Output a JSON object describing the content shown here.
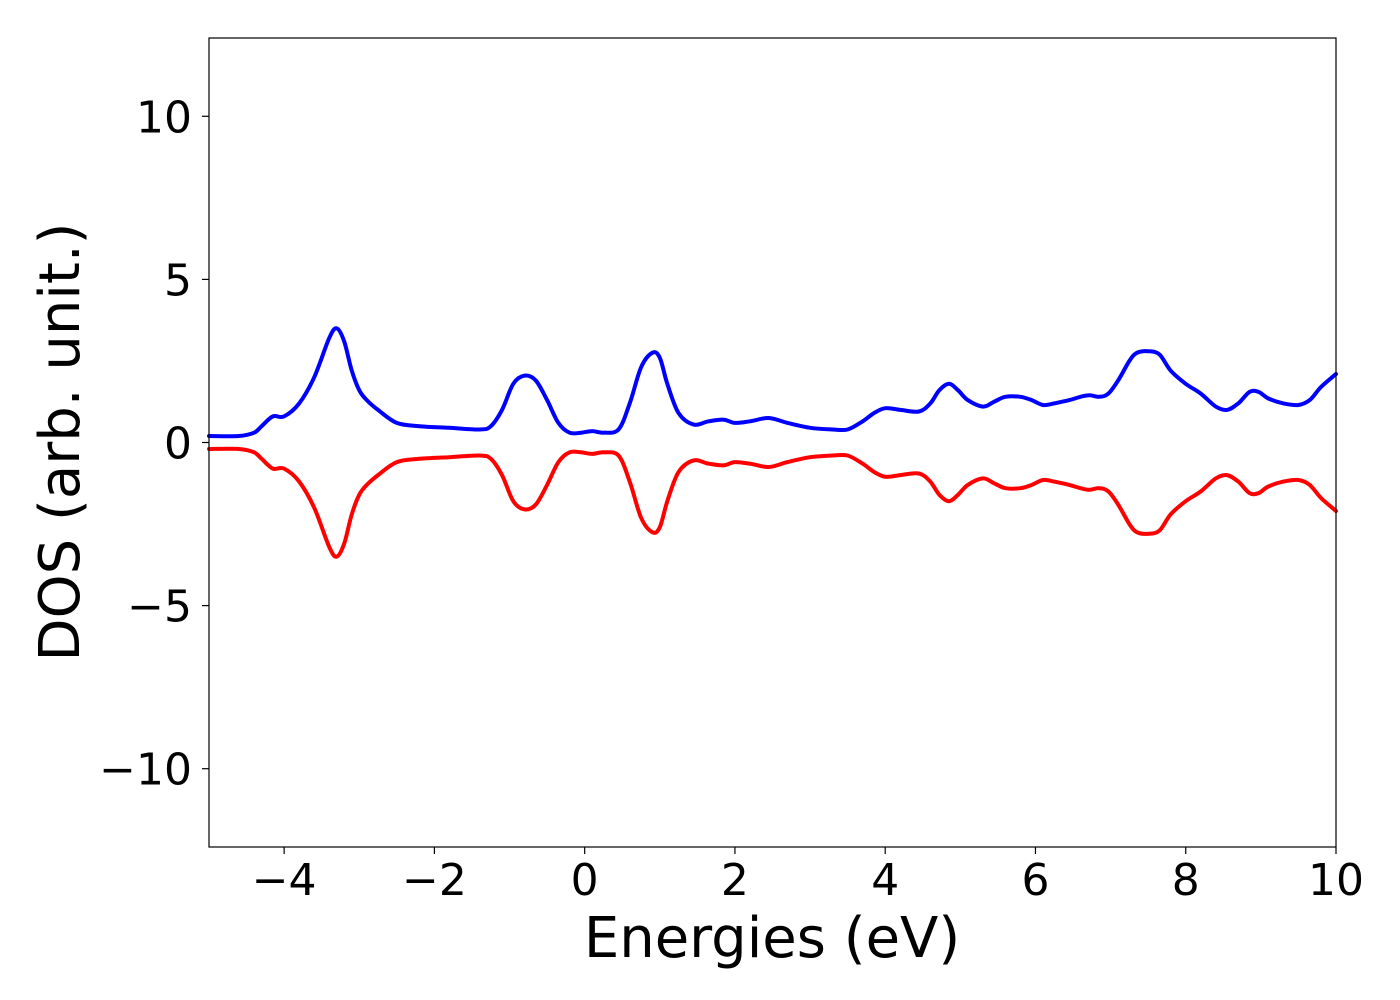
{
  "chart_data": {
    "type": "line",
    "title": "",
    "xlabel": "Energies (eV)",
    "ylabel": "DOS (arb. unit.)",
    "xlim": [
      -5,
      10
    ],
    "ylim": [
      -12.4,
      12.4
    ],
    "xticks": [
      -4,
      -2,
      0,
      2,
      4,
      6,
      8,
      10
    ],
    "xtick_labels": [
      "−4",
      "−2",
      "0",
      "2",
      "4",
      "6",
      "8",
      "10"
    ],
    "yticks": [
      -10,
      -5,
      0,
      5,
      10
    ],
    "ytick_labels": [
      "−10",
      "−5",
      "0",
      "5",
      "10"
    ],
    "grid": false,
    "legend": "none",
    "series": [
      {
        "color": "#0000ff",
        "x": [
          -5.0,
          -4.6,
          -4.4,
          -4.3,
          -4.15,
          -4.0,
          -3.8,
          -3.6,
          -3.4,
          -3.3,
          -3.2,
          -3.1,
          -3.0,
          -2.9,
          -2.75,
          -2.5,
          -2.2,
          -1.8,
          -1.4,
          -1.25,
          -1.1,
          -0.95,
          -0.8,
          -0.65,
          -0.5,
          -0.35,
          -0.2,
          -0.05,
          0.1,
          0.25,
          0.45,
          0.6,
          0.75,
          0.9,
          1.0,
          1.1,
          1.25,
          1.45,
          1.65,
          1.85,
          2.0,
          2.2,
          2.45,
          2.7,
          3.0,
          3.3,
          3.5,
          3.7,
          3.85,
          4.0,
          4.2,
          4.45,
          4.6,
          4.72,
          4.85,
          4.97,
          5.1,
          5.3,
          5.45,
          5.6,
          5.8,
          5.95,
          6.1,
          6.25,
          6.45,
          6.6,
          6.72,
          6.85,
          6.97,
          7.1,
          7.25,
          7.35,
          7.5,
          7.65,
          7.8,
          8.0,
          8.2,
          8.4,
          8.55,
          8.7,
          8.85,
          8.97,
          9.1,
          9.3,
          9.5,
          9.65,
          9.8,
          10.0
        ],
        "y": [
          0.2,
          0.2,
          0.3,
          0.5,
          0.8,
          0.8,
          1.2,
          2.0,
          3.2,
          3.5,
          3.1,
          2.2,
          1.6,
          1.3,
          1.0,
          0.6,
          0.5,
          0.45,
          0.4,
          0.5,
          1.0,
          1.8,
          2.05,
          1.9,
          1.3,
          0.6,
          0.3,
          0.3,
          0.35,
          0.3,
          0.4,
          1.2,
          2.3,
          2.75,
          2.6,
          1.8,
          0.9,
          0.55,
          0.65,
          0.7,
          0.6,
          0.65,
          0.75,
          0.6,
          0.45,
          0.4,
          0.4,
          0.65,
          0.9,
          1.05,
          1.0,
          0.95,
          1.2,
          1.6,
          1.8,
          1.6,
          1.3,
          1.1,
          1.25,
          1.4,
          1.4,
          1.3,
          1.15,
          1.2,
          1.3,
          1.4,
          1.45,
          1.4,
          1.5,
          1.9,
          2.5,
          2.75,
          2.8,
          2.7,
          2.2,
          1.8,
          1.5,
          1.1,
          1.0,
          1.2,
          1.55,
          1.55,
          1.35,
          1.2,
          1.15,
          1.3,
          1.7,
          2.1
        ]
      },
      {
        "color": "#ff0000",
        "x": [
          -5.0,
          -4.6,
          -4.4,
          -4.3,
          -4.15,
          -4.0,
          -3.8,
          -3.6,
          -3.4,
          -3.3,
          -3.2,
          -3.1,
          -3.0,
          -2.9,
          -2.75,
          -2.5,
          -2.2,
          -1.8,
          -1.4,
          -1.25,
          -1.1,
          -0.95,
          -0.8,
          -0.65,
          -0.5,
          -0.35,
          -0.2,
          -0.05,
          0.1,
          0.25,
          0.45,
          0.6,
          0.75,
          0.9,
          1.0,
          1.1,
          1.25,
          1.45,
          1.65,
          1.85,
          2.0,
          2.2,
          2.45,
          2.7,
          3.0,
          3.3,
          3.5,
          3.7,
          3.85,
          4.0,
          4.2,
          4.45,
          4.6,
          4.72,
          4.85,
          4.97,
          5.1,
          5.3,
          5.45,
          5.6,
          5.8,
          5.95,
          6.1,
          6.25,
          6.45,
          6.6,
          6.72,
          6.85,
          6.97,
          7.1,
          7.25,
          7.35,
          7.5,
          7.65,
          7.8,
          8.0,
          8.2,
          8.4,
          8.55,
          8.7,
          8.85,
          8.97,
          9.1,
          9.3,
          9.5,
          9.65,
          9.8,
          10.0
        ],
        "y": [
          -0.2,
          -0.2,
          -0.3,
          -0.5,
          -0.8,
          -0.8,
          -1.2,
          -2.0,
          -3.2,
          -3.5,
          -3.1,
          -2.2,
          -1.6,
          -1.3,
          -1.0,
          -0.6,
          -0.5,
          -0.45,
          -0.4,
          -0.5,
          -1.0,
          -1.8,
          -2.05,
          -1.9,
          -1.3,
          -0.6,
          -0.3,
          -0.3,
          -0.35,
          -0.3,
          -0.4,
          -1.2,
          -2.3,
          -2.75,
          -2.6,
          -1.8,
          -0.9,
          -0.55,
          -0.65,
          -0.7,
          -0.6,
          -0.65,
          -0.75,
          -0.6,
          -0.45,
          -0.4,
          -0.4,
          -0.65,
          -0.9,
          -1.05,
          -1.0,
          -0.95,
          -1.2,
          -1.6,
          -1.8,
          -1.6,
          -1.3,
          -1.1,
          -1.25,
          -1.4,
          -1.4,
          -1.3,
          -1.15,
          -1.2,
          -1.3,
          -1.4,
          -1.45,
          -1.4,
          -1.5,
          -1.9,
          -2.5,
          -2.75,
          -2.8,
          -2.7,
          -2.2,
          -1.8,
          -1.5,
          -1.1,
          -1.0,
          -1.2,
          -1.55,
          -1.55,
          -1.35,
          -1.2,
          -1.15,
          -1.3,
          -1.7,
          -2.1
        ]
      }
    ]
  }
}
